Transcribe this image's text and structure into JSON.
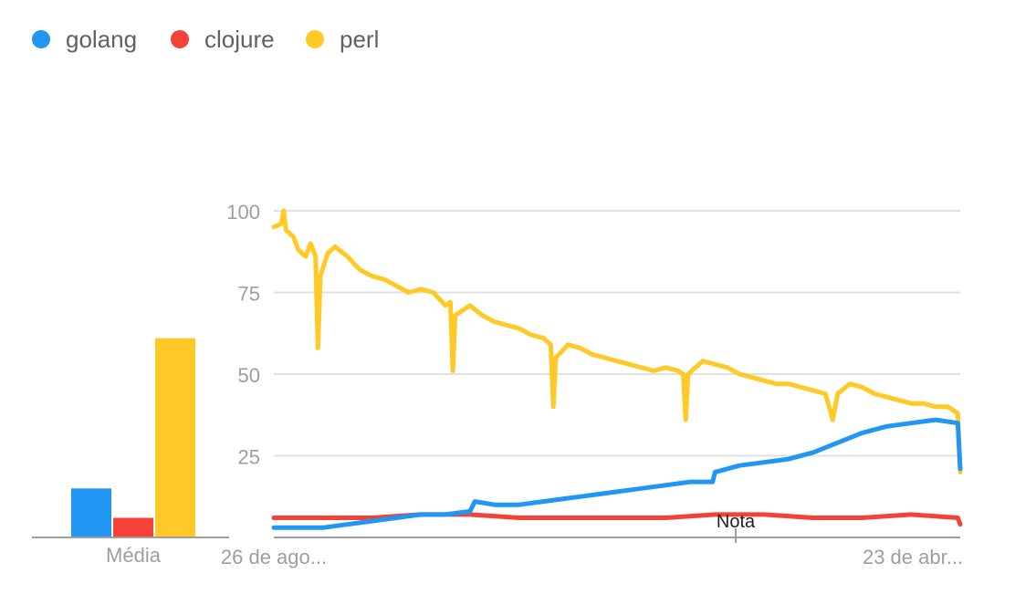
{
  "colors": {
    "golang": "#2196f3",
    "clojure": "#f44336",
    "perl": "#ffca28",
    "grid": "#e0e0e0",
    "axis": "#9e9e9e",
    "tick": "#9e9e9e"
  },
  "chart_data": [
    {
      "type": "bar",
      "title": "",
      "xlabel": "",
      "ylabel": "",
      "categories": [
        "Média"
      ],
      "series": [
        {
          "name": "golang",
          "values": [
            15
          ]
        },
        {
          "name": "clojure",
          "values": [
            6
          ]
        },
        {
          "name": "perl",
          "values": [
            61
          ]
        }
      ],
      "ylim": [
        0,
        100
      ]
    },
    {
      "type": "line",
      "title": "",
      "xlabel": "",
      "ylabel": "",
      "legend": "top-left",
      "grid": true,
      "ylim": [
        0,
        100
      ],
      "yticks": [
        25,
        50,
        75,
        100
      ],
      "x_tick_labels": [
        "26 de ago...",
        "23 de abr..."
      ],
      "annotation": "Nota",
      "series": [
        {
          "name": "golang",
          "points": [
            [
              0,
              3
            ],
            [
              10,
              3
            ],
            [
              20,
              3
            ],
            [
              30,
              4
            ],
            [
              40,
              5
            ],
            [
              50,
              6
            ],
            [
              60,
              7
            ],
            [
              70,
              7
            ],
            [
              80,
              8
            ],
            [
              82,
              11
            ],
            [
              90,
              10
            ],
            [
              100,
              10
            ],
            [
              110,
              11
            ],
            [
              120,
              12
            ],
            [
              130,
              13
            ],
            [
              140,
              14
            ],
            [
              150,
              15
            ],
            [
              160,
              16
            ],
            [
              170,
              17
            ],
            [
              179,
              17
            ],
            [
              180,
              20
            ],
            [
              190,
              22
            ],
            [
              200,
              23
            ],
            [
              210,
              24
            ],
            [
              220,
              26
            ],
            [
              230,
              29
            ],
            [
              240,
              32
            ],
            [
              250,
              34
            ],
            [
              260,
              35
            ],
            [
              270,
              36
            ],
            [
              279,
              35
            ],
            [
              280,
              21
            ]
          ]
        },
        {
          "name": "clojure",
          "points": [
            [
              0,
              6
            ],
            [
              20,
              6
            ],
            [
              40,
              6
            ],
            [
              60,
              7
            ],
            [
              80,
              7
            ],
            [
              100,
              6
            ],
            [
              120,
              6
            ],
            [
              140,
              6
            ],
            [
              160,
              6
            ],
            [
              180,
              7
            ],
            [
              200,
              7
            ],
            [
              220,
              6
            ],
            [
              240,
              6
            ],
            [
              260,
              7
            ],
            [
              279,
              6
            ],
            [
              280,
              4
            ]
          ]
        },
        {
          "name": "perl",
          "points": [
            [
              0,
              95
            ],
            [
              3,
              96
            ],
            [
              4,
              100
            ],
            [
              5,
              94
            ],
            [
              8,
              92
            ],
            [
              10,
              88
            ],
            [
              13,
              86
            ],
            [
              15,
              90
            ],
            [
              17,
              86
            ],
            [
              18,
              58
            ],
            [
              19,
              80
            ],
            [
              22,
              87
            ],
            [
              25,
              89
            ],
            [
              30,
              86
            ],
            [
              35,
              82
            ],
            [
              40,
              80
            ],
            [
              45,
              79
            ],
            [
              50,
              77
            ],
            [
              55,
              75
            ],
            [
              60,
              76
            ],
            [
              65,
              75
            ],
            [
              70,
              71
            ],
            [
              72,
              72
            ],
            [
              73,
              51
            ],
            [
              74,
              68
            ],
            [
              80,
              71
            ],
            [
              85,
              68
            ],
            [
              90,
              66
            ],
            [
              95,
              65
            ],
            [
              100,
              64
            ],
            [
              105,
              62
            ],
            [
              110,
              61
            ],
            [
              113,
              59
            ],
            [
              114,
              40
            ],
            [
              115,
              55
            ],
            [
              120,
              59
            ],
            [
              125,
              58
            ],
            [
              130,
              56
            ],
            [
              135,
              55
            ],
            [
              140,
              54
            ],
            [
              145,
              53
            ],
            [
              150,
              52
            ],
            [
              155,
              51
            ],
            [
              160,
              52
            ],
            [
              165,
              51
            ],
            [
              167,
              50
            ],
            [
              168,
              36
            ],
            [
              169,
              50
            ],
            [
              175,
              54
            ],
            [
              180,
              53
            ],
            [
              185,
              52
            ],
            [
              190,
              50
            ],
            [
              195,
              49
            ],
            [
              200,
              48
            ],
            [
              205,
              47
            ],
            [
              210,
              47
            ],
            [
              215,
              46
            ],
            [
              220,
              45
            ],
            [
              225,
              44
            ],
            [
              228,
              36
            ],
            [
              230,
              44
            ],
            [
              235,
              47
            ],
            [
              240,
              46
            ],
            [
              245,
              44
            ],
            [
              250,
              43
            ],
            [
              255,
              42
            ],
            [
              260,
              41
            ],
            [
              265,
              41
            ],
            [
              270,
              40
            ],
            [
              275,
              40
            ],
            [
              279,
              38
            ],
            [
              280,
              20
            ]
          ]
        }
      ]
    }
  ]
}
